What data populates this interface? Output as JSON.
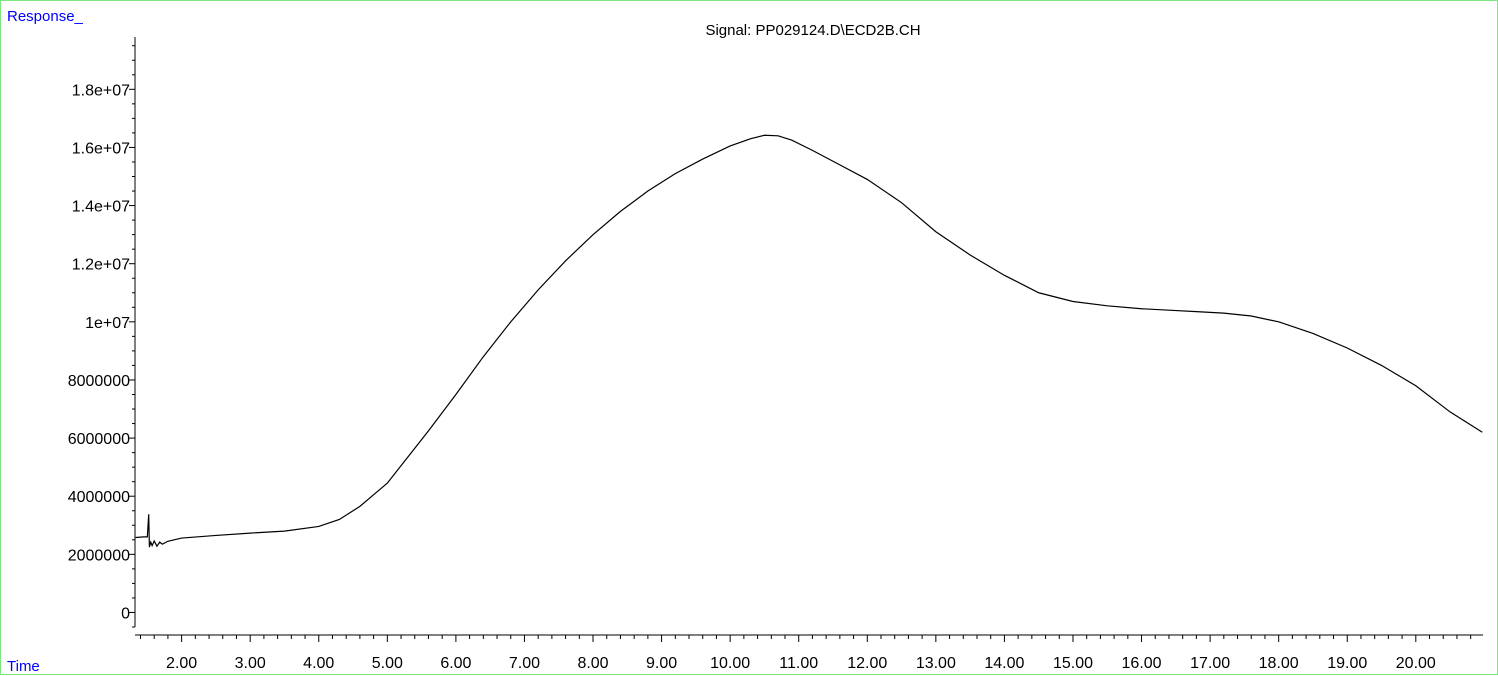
{
  "chart_data": {
    "type": "line",
    "title": "Signal: PP029124.D\\ECD2B.CH",
    "xlabel": "Time",
    "ylabel": "Response_",
    "xlim": [
      1.32,
      20.98
    ],
    "ylim": [
      -500000,
      19800000
    ],
    "grid": false,
    "line_color": "#000000",
    "label_color": "#0000ff",
    "frame_color": "#7ee67e",
    "x_ticks": [
      {
        "value": 2,
        "label": "2.00"
      },
      {
        "value": 3,
        "label": "3.00"
      },
      {
        "value": 4,
        "label": "4.00"
      },
      {
        "value": 5,
        "label": "5.00"
      },
      {
        "value": 6,
        "label": "6.00"
      },
      {
        "value": 7,
        "label": "7.00"
      },
      {
        "value": 8,
        "label": "8.00"
      },
      {
        "value": 9,
        "label": "9.00"
      },
      {
        "value": 10,
        "label": "10.00"
      },
      {
        "value": 11,
        "label": "11.00"
      },
      {
        "value": 12,
        "label": "12.00"
      },
      {
        "value": 13,
        "label": "13.00"
      },
      {
        "value": 14,
        "label": "14.00"
      },
      {
        "value": 15,
        "label": "15.00"
      },
      {
        "value": 16,
        "label": "16.00"
      },
      {
        "value": 17,
        "label": "17.00"
      },
      {
        "value": 18,
        "label": "18.00"
      },
      {
        "value": 19,
        "label": "19.00"
      },
      {
        "value": 20,
        "label": "20.00"
      }
    ],
    "y_ticks": [
      {
        "value": 0,
        "label": "0"
      },
      {
        "value": 2000000,
        "label": "2000000"
      },
      {
        "value": 4000000,
        "label": "4000000"
      },
      {
        "value": 6000000,
        "label": "6000000"
      },
      {
        "value": 8000000,
        "label": "8000000"
      },
      {
        "value": 10000000,
        "label": "1e+07"
      },
      {
        "value": 12000000,
        "label": "1.2e+07"
      },
      {
        "value": 14000000,
        "label": "1.4e+07"
      },
      {
        "value": 16000000,
        "label": "1.6e+07"
      },
      {
        "value": 18000000,
        "label": "1.8e+07"
      }
    ],
    "series": [
      {
        "x": [
          1.33,
          1.45,
          1.5,
          1.52,
          1.53,
          1.55,
          1.57,
          1.6,
          1.64,
          1.68,
          1.72,
          1.8,
          2.0,
          2.5,
          3.0,
          3.5,
          4.0,
          4.3,
          4.6,
          5.0,
          5.3,
          5.6,
          6.0,
          6.4,
          6.8,
          7.2,
          7.6,
          8.0,
          8.4,
          8.8,
          9.2,
          9.6,
          10.0,
          10.3,
          10.5,
          10.7,
          10.9,
          11.2,
          11.6,
          12.0,
          12.5,
          13.0,
          13.5,
          14.0,
          14.5,
          15.0,
          15.5,
          16.0,
          16.4,
          16.8,
          17.2,
          17.6,
          18.0,
          18.5,
          19.0,
          19.5,
          20.0,
          20.5,
          20.97
        ],
        "y": [
          2580000,
          2600000,
          2600000,
          3380000,
          2250000,
          2420000,
          2300000,
          2460000,
          2280000,
          2420000,
          2350000,
          2450000,
          2560000,
          2650000,
          2730000,
          2800000,
          2960000,
          3200000,
          3650000,
          4450000,
          5350000,
          6250000,
          7500000,
          8800000,
          10000000,
          11100000,
          12100000,
          13000000,
          13800000,
          14500000,
          15100000,
          15600000,
          16050000,
          16300000,
          16420000,
          16400000,
          16250000,
          15900000,
          15400000,
          14900000,
          14100000,
          13100000,
          12300000,
          11600000,
          11000000,
          10700000,
          10550000,
          10450000,
          10400000,
          10350000,
          10300000,
          10200000,
          10000000,
          9600000,
          9100000,
          8500000,
          7800000,
          6900000,
          6200000
        ]
      }
    ]
  }
}
